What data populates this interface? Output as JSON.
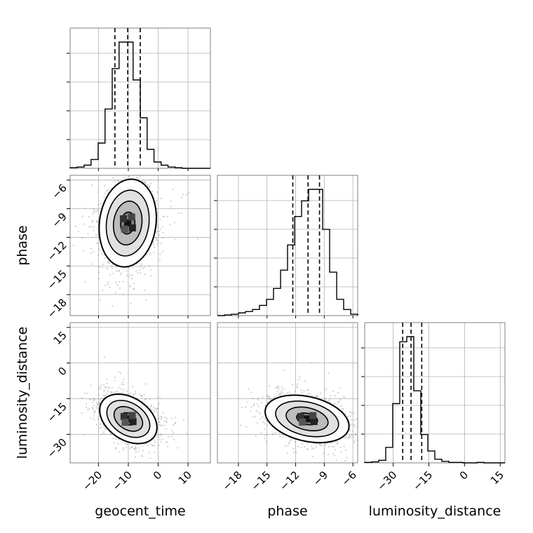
{
  "chart_data": {
    "type": "corner",
    "parameters": [
      "geocent_time",
      "phase",
      "luminosity_distance"
    ],
    "axis_labels": {
      "x": [
        "geocent_time",
        "phase",
        "luminosity_distance"
      ],
      "y": [
        "phase",
        "luminosity_distance"
      ]
    },
    "ranges": {
      "geocent_time": [
        -29.5,
        17.5
      ],
      "phase": [
        -20.2,
        -5.5
      ],
      "luminosity_distance": [
        -42,
        17
      ]
    },
    "ticks": {
      "geocent_time": [
        -20,
        -10,
        0,
        10
      ],
      "phase": [
        -18,
        -15,
        -12,
        -9,
        -6
      ],
      "luminosity_distance": [
        -30,
        -15,
        0,
        15
      ]
    },
    "tick_labels": {
      "geocent_time": [
        "−20",
        "−10",
        "0",
        "10"
      ],
      "phase": [
        "−18",
        "−15",
        "−12",
        "−9",
        "−6"
      ],
      "luminosity_distance": [
        "−30",
        "−15",
        "0",
        "15"
      ]
    },
    "quantiles": {
      "geocent_time": [
        -14.5,
        -10.2,
        -6.0
      ],
      "phase": [
        -12.3,
        -10.7,
        -9.5
      ],
      "luminosity_distance": [
        -26.0,
        -22.5,
        -18.0
      ]
    },
    "histograms": {
      "geocent_time": {
        "edges": [
          -29.5,
          -27.2,
          -24.8,
          -22.5,
          -20.1,
          -17.8,
          -15.4,
          -13.1,
          -10.7,
          -8.4,
          -6.0,
          -3.7,
          -1.4,
          1.0,
          3.3,
          5.7,
          8.0,
          10.4,
          12.7,
          15.1,
          17.5
        ],
        "counts": [
          1,
          2,
          5,
          14,
          40,
          94,
          158,
          200,
          200,
          140,
          80,
          30,
          10,
          5,
          2,
          1,
          0,
          0,
          0,
          0
        ]
      },
      "phase": {
        "edges": [
          -20.2,
          -19.46,
          -18.73,
          -17.99,
          -17.26,
          -16.52,
          -15.79,
          -15.05,
          -14.32,
          -13.58,
          -12.85,
          -12.11,
          -11.38,
          -10.64,
          -9.91,
          -9.17,
          -8.44,
          -7.7,
          -6.97,
          -6.23,
          -5.5
        ],
        "counts": [
          0,
          1,
          2,
          4,
          6,
          9,
          15,
          24,
          40,
          67,
          104,
          146,
          169,
          186,
          186,
          127,
          64,
          24,
          9,
          2
        ]
      },
      "luminosity_distance": {
        "edges": [
          -42,
          -39.05,
          -36.1,
          -33.15,
          -30.2,
          -27.25,
          -24.3,
          -21.35,
          -18.4,
          -15.45,
          -12.5,
          -9.55,
          -6.6,
          -3.65,
          -0.7,
          2.25,
          5.2,
          8.15,
          11.1,
          14.05,
          17
        ],
        "counts": [
          1,
          2,
          5,
          30,
          115,
          235,
          245,
          140,
          55,
          23,
          7,
          3,
          1,
          1,
          0,
          0,
          1,
          0,
          0,
          0
        ]
      }
    },
    "density_2d": [
      {
        "x": "geocent_time",
        "y": "phase",
        "center": [
          -10.2,
          -10.5
        ],
        "sigma": [
          4.8,
          2.3
        ],
        "rho": 0.12
      },
      {
        "x": "geocent_time",
        "y": "luminosity_distance",
        "center": [
          -10.0,
          -23.5
        ],
        "sigma": [
          4.8,
          5.2
        ],
        "rho": -0.35
      },
      {
        "x": "phase",
        "y": "luminosity_distance",
        "center": [
          -10.8,
          -23.5
        ],
        "sigma": [
          2.2,
          5.0
        ],
        "rho": -0.3
      }
    ],
    "contour_levels": [
      "0.5-sigma",
      "1-sigma",
      "1.5-sigma",
      "2-sigma"
    ],
    "grid": true,
    "colors": {
      "line": "#000000",
      "grid": "#b0b0b0",
      "points": "#9a9a9a",
      "frame": "#808080"
    }
  }
}
